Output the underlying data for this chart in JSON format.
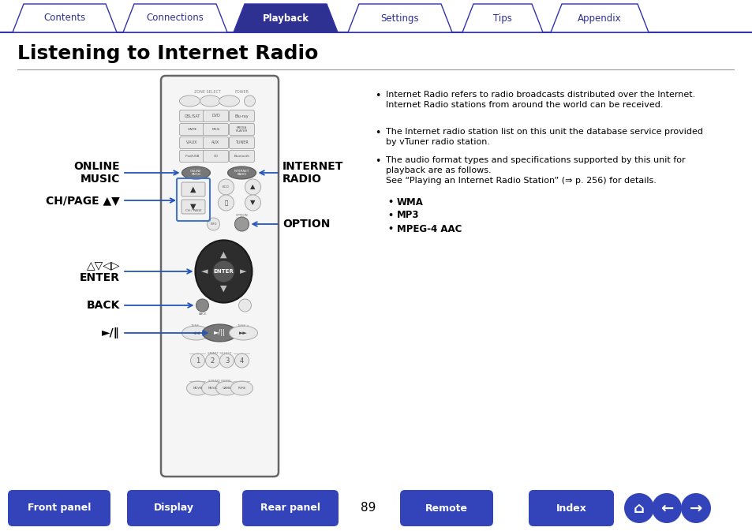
{
  "title": "Listening to Internet Radio",
  "tab_labels": [
    "Contents",
    "Connections",
    "Playback",
    "Settings",
    "Tips",
    "Appendix"
  ],
  "active_tab": "Playback",
  "tab_color_active": "#2E3192",
  "tab_color_inactive": "#ffffff",
  "tab_border_color": "#3333aa",
  "tab_text_active": "#ffffff",
  "tab_text_inactive": "#2E3192",
  "bottom_buttons": [
    "Front panel",
    "Display",
    "Rear panel",
    "Remote",
    "Index"
  ],
  "page_number": "89",
  "button_color": "#3344bb",
  "bullet_points": [
    "Internet Radio refers to radio broadcasts distributed over the Internet.\nInternet Radio stations from around the world can be received.",
    "The Internet radio station list on this unit the database service provided\nby vTuner radio station.",
    "The audio format types and specifications supported by this unit for\nplayback are as follows.\nSee “Playing an Internet Radio Station” (⇒ p. 256) for details."
  ],
  "sub_bullets": [
    "WMA",
    "MP3",
    "MPEG-4 AAC"
  ],
  "bg_color": "#ffffff",
  "title_color": "#000000",
  "remote_bg": "#f5f5f5",
  "remote_border": "#666666",
  "btn_dark": "#888888",
  "btn_light": "#e8e8e8",
  "nav_dark": "#2a2a2a",
  "arrow_color": "#2255bb",
  "label_color": "#000000",
  "ch_box_color": "#4477cc"
}
